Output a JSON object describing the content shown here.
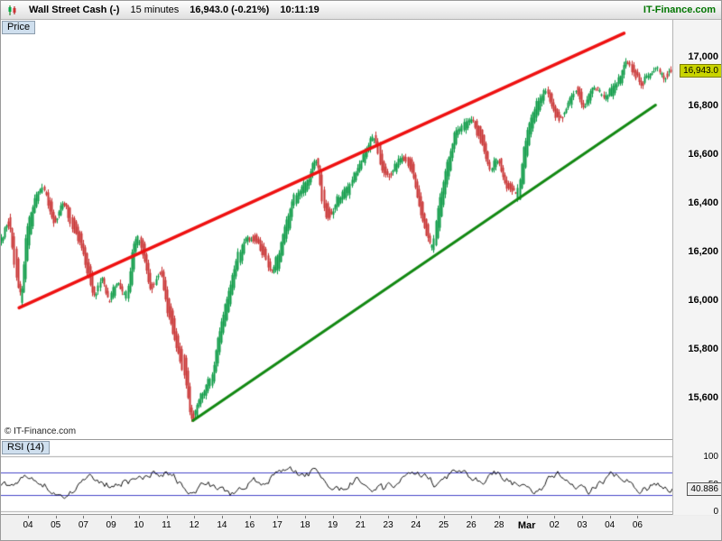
{
  "header": {
    "title": "Wall Street Cash (-)",
    "timeframe": "15 minutes",
    "quote": "16,943.0 (-0.21%)",
    "time": "10:11:19",
    "brand": "IT-Finance.com"
  },
  "price_panel": {
    "tab_label": "Price",
    "copyright": "© IT-Finance.com",
    "badge": "16,943.0"
  },
  "rsi_panel": {
    "tab_label": "RSI (14)",
    "badge": "40.886"
  },
  "chart_data": [
    {
      "type": "candlestick",
      "name": "Wall Street Cash (-) — 15 minutes",
      "y_range": [
        15425,
        17150
      ],
      "y_ticks": [
        {
          "value": 17000,
          "label": "17,000"
        },
        {
          "value": 16800,
          "label": "16,800"
        },
        {
          "value": 16600,
          "label": "16,600"
        },
        {
          "value": 16400,
          "label": "16,400"
        },
        {
          "value": 16200,
          "label": "16,200"
        },
        {
          "value": 16000,
          "label": "16,000"
        },
        {
          "value": 15800,
          "label": "15,800"
        },
        {
          "value": 15600,
          "label": "15,600"
        }
      ],
      "x_labels": [
        "04",
        "05",
        "07",
        "09",
        "10",
        "11",
        "12",
        "14",
        "16",
        "17",
        "18",
        "19",
        "21",
        "23",
        "24",
        "25",
        "26",
        "28",
        "Mar",
        "02",
        "03",
        "04",
        "06"
      ],
      "last_price": 16943.0,
      "candle_count": 360,
      "noise_seed": 20140306,
      "colors": {
        "up": "#0a9a44",
        "down": "#c83232"
      },
      "trendlines": [
        {
          "color": "#ee1111",
          "width": 3.5,
          "from": [
            0.027,
            15968
          ],
          "to": [
            0.928,
            17095
          ]
        },
        {
          "color": "#128812",
          "width": 3,
          "from": [
            0.286,
            15505
          ],
          "to": [
            0.975,
            16800
          ]
        }
      ],
      "price_path": [
        [
          0.003,
          16240
        ],
        [
          0.013,
          16300
        ],
        [
          0.024,
          16120
        ],
        [
          0.03,
          15990
        ],
        [
          0.038,
          16220
        ],
        [
          0.051,
          16400
        ],
        [
          0.065,
          16450
        ],
        [
          0.081,
          16330
        ],
        [
          0.097,
          16390
        ],
        [
          0.11,
          16290
        ],
        [
          0.128,
          16150
        ],
        [
          0.141,
          16000
        ],
        [
          0.151,
          16080
        ],
        [
          0.161,
          15990
        ],
        [
          0.175,
          16080
        ],
        [
          0.188,
          16030
        ],
        [
          0.202,
          16260
        ],
        [
          0.212,
          16220
        ],
        [
          0.226,
          16070
        ],
        [
          0.239,
          16120
        ],
        [
          0.253,
          15940
        ],
        [
          0.266,
          15800
        ],
        [
          0.276,
          15700
        ],
        [
          0.285,
          15530
        ],
        [
          0.296,
          15600
        ],
        [
          0.306,
          15640
        ],
        [
          0.317,
          15700
        ],
        [
          0.328,
          15860
        ],
        [
          0.339,
          15980
        ],
        [
          0.352,
          16150
        ],
        [
          0.366,
          16250
        ],
        [
          0.379,
          16230
        ],
        [
          0.392,
          16180
        ],
        [
          0.403,
          16090
        ],
        [
          0.414,
          16150
        ],
        [
          0.425,
          16280
        ],
        [
          0.438,
          16400
        ],
        [
          0.452,
          16450
        ],
        [
          0.462,
          16500
        ],
        [
          0.473,
          16580
        ],
        [
          0.484,
          16400
        ],
        [
          0.495,
          16350
        ],
        [
          0.508,
          16420
        ],
        [
          0.522,
          16480
        ],
        [
          0.535,
          16550
        ],
        [
          0.548,
          16620
        ],
        [
          0.559,
          16660
        ],
        [
          0.57,
          16550
        ],
        [
          0.581,
          16500
        ],
        [
          0.591,
          16540
        ],
        [
          0.602,
          16580
        ],
        [
          0.613,
          16520
        ],
        [
          0.624,
          16420
        ],
        [
          0.634,
          16310
        ],
        [
          0.645,
          16210
        ],
        [
          0.656,
          16400
        ],
        [
          0.667,
          16550
        ],
        [
          0.68,
          16680
        ],
        [
          0.691,
          16700
        ],
        [
          0.704,
          16750
        ],
        [
          0.718,
          16650
        ],
        [
          0.731,
          16520
        ],
        [
          0.742,
          16580
        ],
        [
          0.753,
          16500
        ],
        [
          0.763,
          16450
        ],
        [
          0.774,
          16430
        ],
        [
          0.785,
          16650
        ],
        [
          0.796,
          16750
        ],
        [
          0.806,
          16820
        ],
        [
          0.817,
          16860
        ],
        [
          0.828,
          16780
        ],
        [
          0.839,
          16750
        ],
        [
          0.849,
          16800
        ],
        [
          0.86,
          16850
        ],
        [
          0.871,
          16760
        ],
        [
          0.882,
          16820
        ],
        [
          0.892,
          16840
        ],
        [
          0.903,
          16830
        ],
        [
          0.914,
          16880
        ],
        [
          0.925,
          16920
        ],
        [
          0.935,
          16980
        ],
        [
          0.946,
          16940
        ],
        [
          0.957,
          16900
        ],
        [
          0.968,
          16930
        ],
        [
          0.978,
          16950
        ],
        [
          0.989,
          16943
        ],
        [
          1.0,
          16940
        ]
      ]
    },
    {
      "type": "line",
      "name": "RSI (14)",
      "period": 14,
      "y_range": [
        0,
        100
      ],
      "y_ticks": [
        {
          "value": 100,
          "label": "100"
        },
        {
          "value": 50,
          "label": "50"
        },
        {
          "value": 0,
          "label": "0"
        }
      ],
      "levels": [
        70,
        30
      ],
      "level_color": "#4646c8",
      "line_color": "#111111",
      "last_value": 40.886,
      "point_count": 370,
      "noise_seed": 40886,
      "values": [
        52,
        45,
        58,
        50,
        40,
        35,
        55,
        63,
        46,
        57,
        49,
        66,
        72,
        55,
        38,
        50,
        44,
        30,
        57,
        50,
        63,
        76,
        60,
        73,
        54,
        43,
        61,
        49,
        36,
        55,
        67,
        58,
        45,
        71,
        62,
        51,
        67,
        57,
        43,
        34,
        56,
        64,
        49,
        39,
        59,
        67,
        53,
        42,
        50,
        41
      ]
    }
  ]
}
